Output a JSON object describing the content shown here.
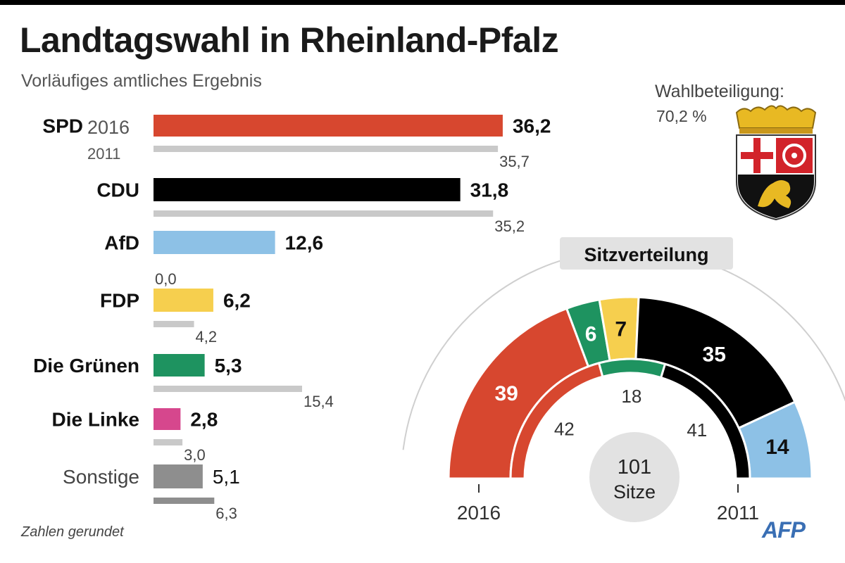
{
  "header": {
    "title": "Landtagswahl in Rheinland-Pfalz",
    "subtitle": "Vorläufiges amtliches Ergebnis"
  },
  "turnout": {
    "label": "Wahlbeteiligung:",
    "value": "70,2 %"
  },
  "chart_data": [
    {
      "type": "bar",
      "orientation": "horizontal",
      "unit": "%",
      "categories": [
        "SPD",
        "CDU",
        "AfD",
        "FDP",
        "Die Grünen",
        "Die Linke",
        "Sonstige"
      ],
      "category_emphasis": [
        "bold",
        "bold",
        "bold",
        "bold",
        "bold",
        "bold",
        "normal"
      ],
      "year_labels": {
        "current": "2016",
        "previous": "2011"
      },
      "series": [
        {
          "name": "2016",
          "values": [
            36.2,
            31.8,
            12.6,
            6.2,
            5.3,
            2.8,
            5.1
          ],
          "labels": [
            "36,2",
            "31,8",
            "12,6",
            "6,2",
            "5,3",
            "2,8",
            "5,1"
          ],
          "colors": [
            "#d7472f",
            "#000000",
            "#8dc1e6",
            "#f6cf4e",
            "#1e9360",
            "#d6478d",
            "#8e8e8e"
          ]
        },
        {
          "name": "2011",
          "values": [
            35.7,
            35.2,
            0.0,
            4.2,
            15.4,
            3.0,
            6.3
          ],
          "labels": [
            "35,7",
            "35,2",
            "0,0",
            "4,2",
            "15,4",
            "3,0",
            "6,3"
          ],
          "colors": [
            "#c9c9c9",
            "#c9c9c9",
            "#c9c9c9",
            "#c9c9c9",
            "#c9c9c9",
            "#c9c9c9",
            "#8e8e8e"
          ]
        }
      ]
    },
    {
      "type": "pie",
      "subtype": "semicircle-parliament",
      "title": "Sitzverteilung",
      "total_label": "101",
      "total_unit": "Sitze",
      "outer_ring_label": "2016",
      "inner_ring_label": "2011",
      "outer_ring": [
        {
          "party": "SPD",
          "seats": 39,
          "label": "39",
          "color": "#d7472f"
        },
        {
          "party": "Die Grünen",
          "seats": 6,
          "label": "6",
          "color": "#1e9360"
        },
        {
          "party": "FDP",
          "seats": 7,
          "label": "7",
          "color": "#f6cf4e"
        },
        {
          "party": "CDU",
          "seats": 35,
          "label": "35",
          "color": "#000000"
        },
        {
          "party": "AfD",
          "seats": 14,
          "label": "14",
          "color": "#8dc1e6"
        }
      ],
      "inner_ring": [
        {
          "party": "SPD",
          "seats": 42,
          "label": "42",
          "color": "#d7472f"
        },
        {
          "party": "Die Grünen",
          "seats": 18,
          "label": "18",
          "color": "#1e9360"
        },
        {
          "party": "CDU",
          "seats": 41,
          "label": "41",
          "color": "#000000"
        }
      ]
    }
  ],
  "footer": {
    "note": "Zahlen gerundet",
    "logo": "AFP"
  }
}
